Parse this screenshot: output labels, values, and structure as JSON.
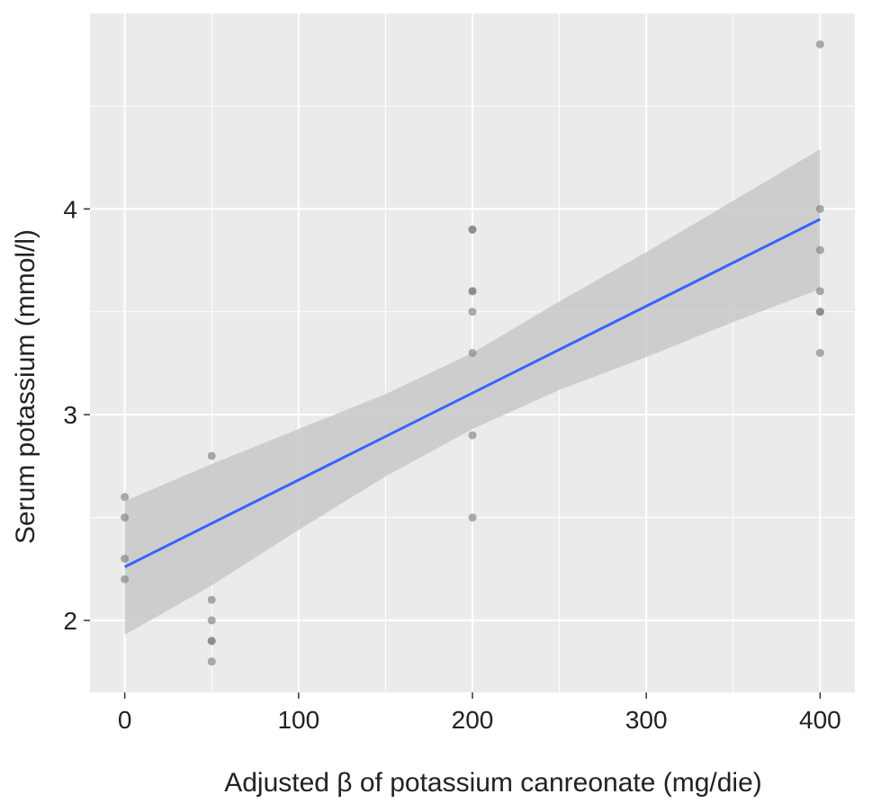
{
  "chart_data": {
    "type": "scatter",
    "title": "",
    "xlabel": "Adjusted β of potassium canreonate (mg/die)",
    "ylabel": "Serum potassium (mmol/l)",
    "xlim": [
      -20,
      420
    ],
    "ylim": [
      1.65,
      4.95
    ],
    "x_ticks": [
      0,
      100,
      200,
      300,
      400
    ],
    "x_tick_labels": [
      "0",
      "100",
      "200",
      "300",
      "400"
    ],
    "y_ticks": [
      2,
      3,
      4
    ],
    "y_tick_labels": [
      "2",
      "3",
      "4"
    ],
    "grid": true,
    "legend": "none",
    "points": [
      {
        "x": 0,
        "y": 2.6
      },
      {
        "x": 0,
        "y": 2.5
      },
      {
        "x": 0,
        "y": 2.3
      },
      {
        "x": 0,
        "y": 2.2
      },
      {
        "x": 50,
        "y": 2.8
      },
      {
        "x": 50,
        "y": 2.1
      },
      {
        "x": 50,
        "y": 2.0
      },
      {
        "x": 50,
        "y": 1.9
      },
      {
        "x": 50,
        "y": 1.9
      },
      {
        "x": 50,
        "y": 1.8
      },
      {
        "x": 200,
        "y": 3.9
      },
      {
        "x": 200,
        "y": 3.9
      },
      {
        "x": 200,
        "y": 3.6
      },
      {
        "x": 200,
        "y": 3.6
      },
      {
        "x": 200,
        "y": 3.5
      },
      {
        "x": 200,
        "y": 3.3
      },
      {
        "x": 200,
        "y": 2.9
      },
      {
        "x": 200,
        "y": 2.5
      },
      {
        "x": 400,
        "y": 4.8
      },
      {
        "x": 400,
        "y": 4.0
      },
      {
        "x": 400,
        "y": 3.8
      },
      {
        "x": 400,
        "y": 3.6
      },
      {
        "x": 400,
        "y": 3.5
      },
      {
        "x": 400,
        "y": 3.5
      },
      {
        "x": 400,
        "y": 3.3
      }
    ],
    "regression": {
      "x": [
        0,
        400
      ],
      "y": [
        2.26,
        3.95
      ]
    },
    "confidence_band": [
      {
        "x": 0,
        "lower": 1.93,
        "upper": 2.58
      },
      {
        "x": 50,
        "lower": 2.17,
        "upper": 2.76
      },
      {
        "x": 100,
        "lower": 2.44,
        "upper": 2.93
      },
      {
        "x": 150,
        "lower": 2.7,
        "upper": 3.1
      },
      {
        "x": 200,
        "lower": 2.93,
        "upper": 3.3
      },
      {
        "x": 250,
        "lower": 3.12,
        "upper": 3.55
      },
      {
        "x": 300,
        "lower": 3.28,
        "upper": 3.79
      },
      {
        "x": 350,
        "lower": 3.45,
        "upper": 4.04
      },
      {
        "x": 400,
        "lower": 3.61,
        "upper": 4.29
      }
    ],
    "colors": {
      "panel": "#ebebeb",
      "grid": "#ffffff",
      "point": "#7f7f7f",
      "line": "#3366ff",
      "band": "#c8c8c8",
      "text": "#222222"
    }
  }
}
